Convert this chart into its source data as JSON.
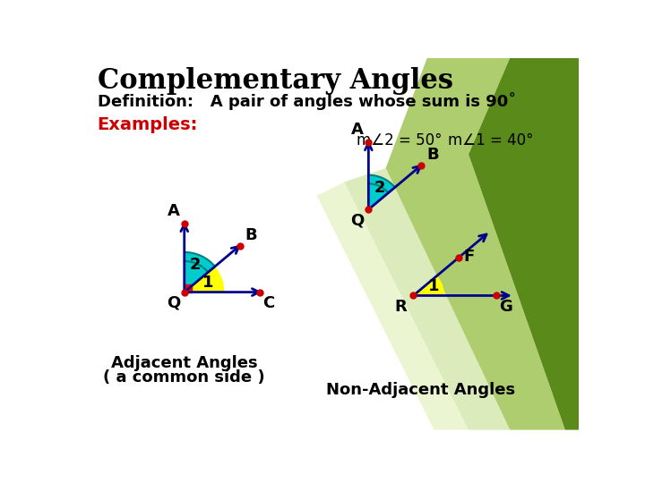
{
  "title": "Complementary Angles",
  "definition": "Definition:   A pair of angles whose sum is 90˚",
  "examples_label": "Examples:",
  "angle_label1": "m∠2 = 50°",
  "angle_label2": "m∠1 = 40°",
  "adjacent_caption1": "Adjacent Angles",
  "adjacent_caption2": "( a common side )",
  "nonadjacent_caption": "Non-Adjacent Angles",
  "bg_color": "#ffffff",
  "title_color": "#000000",
  "def_color": "#000000",
  "examples_color": "#cc0000",
  "navy": "#00008B",
  "cyan_fill": "#00CCCC",
  "yellow_fill": "#FFFF00",
  "teal_arc": "#008080",
  "red_sq": "#FF0000",
  "dot_color": "#cc0000",
  "green1": "#5a8a1a",
  "green2": "#4a7a10",
  "green3": "#8ab830",
  "green_light": "#b8d878",
  "green_pale": "#d0e890"
}
